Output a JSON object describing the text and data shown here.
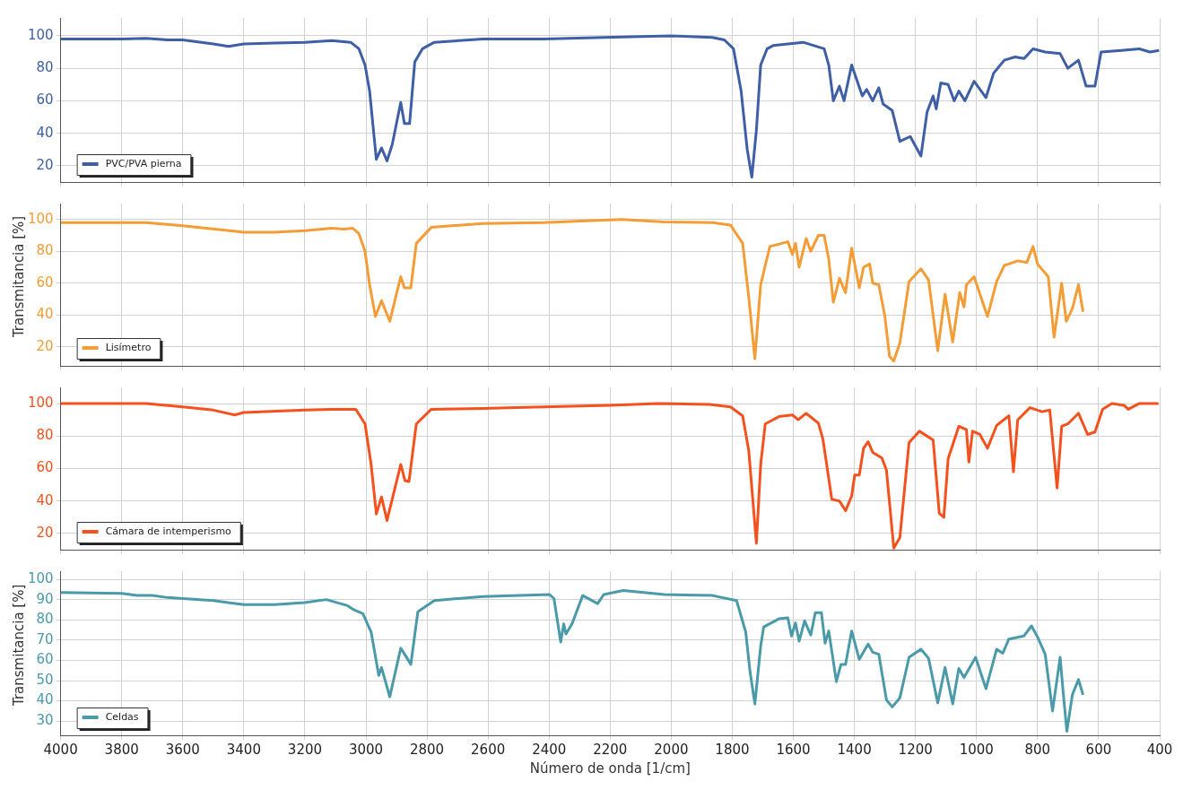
{
  "chart_data": [
    {
      "type": "line",
      "xlim": [
        4000,
        400
      ],
      "xticks": [
        4000,
        3800,
        3600,
        3400,
        3200,
        3000,
        2800,
        2600,
        2400,
        2200,
        2000,
        1800,
        1600,
        1400,
        1200,
        1000,
        800,
        600,
        400
      ],
      "ylim": [
        10,
        111
      ],
      "yticks": [
        20,
        40,
        60,
        80,
        100
      ],
      "grid": true,
      "legend": "bottom left",
      "tick_labels": "y",
      "series": [
        {
          "name": "PVC/PVA pierna",
          "color": "#3e5fa6",
          "x": [
            4000,
            3800,
            3720,
            3650,
            3600,
            3500,
            3450,
            3400,
            3300,
            3200,
            3112,
            3050,
            3023,
            3003,
            2988,
            2966,
            2949,
            2931,
            2914,
            2886,
            2874,
            2857,
            2840,
            2815,
            2776,
            2617,
            2419,
            2221,
            2004,
            1865,
            1826,
            1796,
            1771,
            1751,
            1736,
            1721,
            1707,
            1686,
            1666,
            1568,
            1499,
            1484,
            1469,
            1449,
            1434,
            1409,
            1374,
            1360,
            1340,
            1320,
            1306,
            1276,
            1251,
            1217,
            1182,
            1162,
            1142,
            1132,
            1117,
            1093,
            1073,
            1058,
            1038,
            1008,
            969,
            944,
            909,
            874,
            844,
            815,
            775,
            726,
            701,
            666,
            641,
            612,
            592,
            526,
            467,
            432,
            402
          ],
          "values": [
            98,
            98,
            98.5,
            97.5,
            97.5,
            95,
            93.5,
            95,
            95.5,
            96,
            97,
            96,
            92,
            82,
            66,
            24,
            31,
            23,
            33,
            59,
            46,
            46,
            84,
            92,
            96,
            98,
            98,
            99,
            100,
            99,
            97.5,
            92,
            66,
            30,
            13,
            42,
            82,
            92,
            94,
            96,
            92,
            82,
            60,
            69,
            60,
            82,
            63,
            67,
            60,
            68,
            58,
            54,
            35,
            38,
            26,
            53,
            63,
            55,
            71,
            70,
            60,
            66,
            60,
            72,
            62,
            77,
            85,
            87,
            86,
            92,
            90,
            89,
            80,
            85,
            69,
            69,
            90,
            91,
            92,
            90,
            91
          ]
        }
      ]
    },
    {
      "type": "line",
      "ylabel": "Transmitancia [%]",
      "xlim": [
        4000,
        400
      ],
      "xticks": [
        4000,
        3800,
        3600,
        3400,
        3200,
        3000,
        2800,
        2600,
        2400,
        2200,
        2000,
        1800,
        1600,
        1400,
        1200,
        1000,
        800,
        600,
        400
      ],
      "ylim": [
        8,
        110
      ],
      "yticks": [
        20,
        40,
        60,
        80,
        100
      ],
      "grid": true,
      "legend": "bottom left",
      "tick_labels": "y",
      "series": [
        {
          "name": "Lisímetro",
          "color": "#f49c35",
          "x": [
            4000,
            3720,
            3600,
            3400,
            3300,
            3200,
            3112,
            3072,
            3043,
            3023,
            3003,
            2988,
            2969,
            2949,
            2922,
            2886,
            2874,
            2853,
            2835,
            2786,
            2617,
            2419,
            2241,
            2162,
            2023,
            1865,
            1806,
            1766,
            1746,
            1726,
            1707,
            1677,
            1618,
            1603,
            1593,
            1581,
            1558,
            1543,
            1518,
            1499,
            1484,
            1469,
            1449,
            1429,
            1409,
            1384,
            1370,
            1350,
            1340,
            1320,
            1300,
            1285,
            1271,
            1251,
            1221,
            1182,
            1157,
            1127,
            1103,
            1078,
            1055,
            1041,
            1033,
            1008,
            964,
            934,
            909,
            865,
            835,
            815,
            800,
            765,
            746,
            721,
            706,
            686,
            666,
            651
          ],
          "values": [
            98,
            98,
            96,
            92,
            92,
            93,
            94.5,
            94,
            94.5,
            91,
            80,
            59,
            39,
            49,
            36,
            64,
            57,
            57,
            85,
            95,
            97.5,
            98,
            99.5,
            100,
            98.5,
            98,
            96.5,
            85,
            51,
            12.5,
            59,
            83,
            86,
            78,
            85,
            70,
            88,
            80,
            90,
            90,
            75,
            48,
            63,
            54,
            82,
            57,
            70,
            72,
            60,
            59,
            39,
            14,
            11,
            22.5,
            61,
            69,
            62,
            17.5,
            53,
            23,
            54,
            45,
            59,
            64,
            39,
            61,
            71,
            74,
            73,
            83,
            72,
            64,
            26,
            60,
            36,
            44,
            59,
            42
          ]
        }
      ]
    },
    {
      "type": "line",
      "xlim": [
        4000,
        400
      ],
      "xticks": [
        4000,
        3800,
        3600,
        3400,
        3200,
        3000,
        2800,
        2600,
        2400,
        2200,
        2000,
        1800,
        1600,
        1400,
        1200,
        1000,
        800,
        600,
        400
      ],
      "ylim": [
        10,
        110
      ],
      "yticks": [
        20,
        40,
        60,
        80,
        100
      ],
      "grid": true,
      "legend": "bottom left",
      "tick_labels": "y",
      "series": [
        {
          "name": "Cámara de intemperismo",
          "color": "#f4511e",
          "x": [
            4000,
            3720,
            3600,
            3500,
            3430,
            3400,
            3200,
            3112,
            3033,
            3003,
            2983,
            2966,
            2949,
            2931,
            2886,
            2872,
            2859,
            2835,
            2786,
            2617,
            2419,
            2201,
            2043,
            1875,
            1806,
            1766,
            1746,
            1721,
            1707,
            1692,
            1647,
            1603,
            1584,
            1558,
            1518,
            1503,
            1474,
            1449,
            1429,
            1409,
            1399,
            1384,
            1370,
            1355,
            1340,
            1310,
            1295,
            1271,
            1251,
            1221,
            1187,
            1142,
            1122,
            1107,
            1093,
            1058,
            1033,
            1025,
            1013,
            989,
            964,
            934,
            894,
            879,
            865,
            825,
            785,
            760,
            736,
            721,
            701,
            666,
            636,
            612,
            587,
            557,
            517,
            503,
            468,
            404
          ],
          "values": [
            100,
            100,
            98,
            96,
            93,
            94.5,
            96,
            96.5,
            96.5,
            87.5,
            62.5,
            32,
            42.5,
            28,
            62.5,
            52.5,
            52,
            87.5,
            96.5,
            97,
            98,
            99,
            100,
            99.5,
            98,
            92.5,
            71,
            14,
            62.5,
            87.5,
            92,
            93,
            90,
            94,
            88,
            78,
            41,
            40,
            34,
            43,
            56,
            56,
            72.5,
            76.5,
            70,
            66.5,
            59,
            11,
            17.5,
            76,
            83,
            77.5,
            32.5,
            30,
            66,
            86,
            84,
            64,
            83,
            81,
            72.5,
            86.5,
            92.5,
            58,
            90,
            97.5,
            95,
            96,
            48,
            86,
            87.5,
            94,
            81,
            82.5,
            96.5,
            100,
            99,
            96.5,
            100,
            100
          ]
        }
      ]
    },
    {
      "type": "line",
      "ylabel": "Transmitancia [%]",
      "xlabel": "Número de onda [1/cm]",
      "xlim": [
        4000,
        400
      ],
      "xticks": [
        4000,
        3800,
        3600,
        3400,
        3200,
        3000,
        2800,
        2600,
        2400,
        2200,
        2000,
        1800,
        1600,
        1400,
        1200,
        1000,
        800,
        600,
        400
      ],
      "ylim": [
        23,
        104
      ],
      "yticks": [
        30,
        40,
        50,
        60,
        70,
        80,
        90,
        100
      ],
      "grid": true,
      "legend": "bottom left",
      "series": [
        {
          "name": "Celdas",
          "color": "#4a9aaa",
          "x": [
            4000,
            3800,
            3750,
            3700,
            3650,
            3600,
            3500,
            3400,
            3300,
            3200,
            3130,
            3060,
            3040,
            3010,
            2983,
            2958,
            2949,
            2922,
            2886,
            2869,
            2853,
            2830,
            2776,
            2617,
            2399,
            2384,
            2362,
            2352,
            2345,
            2325,
            2290,
            2241,
            2221,
            2157,
            2023,
            1865,
            1786,
            1756,
            1742,
            1726,
            1707,
            1697,
            1647,
            1618,
            1606,
            1593,
            1581,
            1563,
            1543,
            1528,
            1508,
            1496,
            1484,
            1459,
            1444,
            1429,
            1409,
            1384,
            1355,
            1340,
            1320,
            1295,
            1276,
            1251,
            1221,
            1182,
            1157,
            1127,
            1103,
            1078,
            1058,
            1041,
            1003,
            969,
            934,
            914,
            894,
            845,
            820,
            800,
            775,
            751,
            726,
            716,
            704,
            686,
            666,
            651
          ],
          "values": [
            93.5,
            93,
            92,
            92,
            91,
            90.5,
            89.5,
            87.5,
            87.5,
            88.5,
            90,
            87,
            85,
            83,
            74,
            52.5,
            56.5,
            42,
            66,
            62,
            58,
            84,
            89.5,
            91.5,
            92.5,
            90.5,
            69,
            78,
            73,
            78,
            92,
            88,
            92.5,
            94.5,
            92.5,
            92,
            89.5,
            74,
            54.5,
            38.5,
            67,
            76.5,
            80.5,
            81,
            72,
            78.5,
            69.5,
            79.5,
            72.5,
            83.5,
            83.5,
            68.5,
            74.5,
            49.5,
            58,
            58,
            74.5,
            60.5,
            68,
            64,
            63,
            40.5,
            37,
            41.5,
            61.5,
            65.5,
            61,
            39,
            56.5,
            38.5,
            56,
            51.5,
            61.5,
            46,
            65.5,
            63.5,
            70.5,
            72,
            77,
            71.5,
            63,
            35,
            61.5,
            44,
            25,
            43,
            50.5,
            43
          ]
        }
      ]
    }
  ]
}
